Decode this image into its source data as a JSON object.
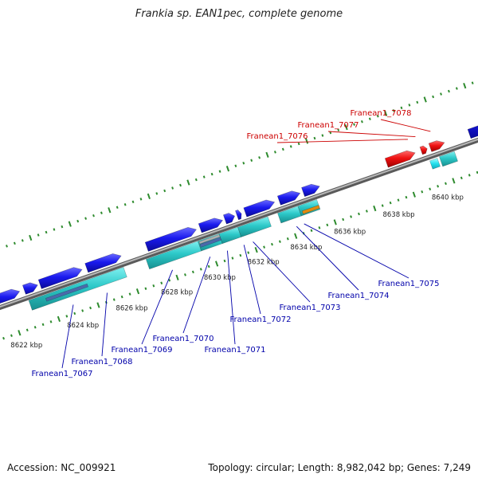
{
  "title": "Frankia sp. EAN1pec, complete genome",
  "footer": {
    "accession": "Accession: NC_009921",
    "summary": "Topology: circular; Length: 8,982,042 bp; Genes: 7,249"
  },
  "colors": {
    "backbone": "#8a8a8a",
    "tick": "#2e8b2e",
    "forward_gene": "#1a1aee",
    "reverse_gene": "#2cc8c8",
    "highlight_gene": "#ee1111",
    "highlight_label": "#cc0000",
    "gene_label": "#0000aa",
    "scale_label": "#222222"
  },
  "scale_labels": [
    "8622 kbp",
    "8624 kbp",
    "8626 kbp",
    "8628 kbp",
    "8630 kbp",
    "8632 kbp",
    "8634 kbp",
    "8636 kbp",
    "8638 kbp",
    "8640 kbp"
  ],
  "gene_labels": [
    {
      "text": "Franean1_7067",
      "highlight": false
    },
    {
      "text": "Franean1_7068",
      "highlight": false
    },
    {
      "text": "Franean1_7069",
      "highlight": false
    },
    {
      "text": "Franean1_7070",
      "highlight": false
    },
    {
      "text": "Franean1_7071",
      "highlight": false
    },
    {
      "text": "Franean1_7072",
      "highlight": false
    },
    {
      "text": "Franean1_7073",
      "highlight": false
    },
    {
      "text": "Franean1_7074",
      "highlight": false
    },
    {
      "text": "Franean1_7075",
      "highlight": false
    },
    {
      "text": "Franean1_7076",
      "highlight": true
    },
    {
      "text": "Franean1_7077",
      "highlight": true
    },
    {
      "text": "Franean1_7078",
      "highlight": true
    }
  ]
}
